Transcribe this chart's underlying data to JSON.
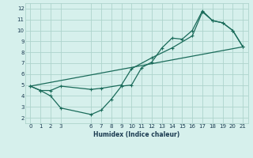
{
  "xlabel": "Humidex (Indice chaleur)",
  "xlim": [
    -0.5,
    21.5
  ],
  "ylim": [
    1.5,
    12.5
  ],
  "xticks": [
    0,
    1,
    2,
    3,
    6,
    7,
    8,
    9,
    10,
    11,
    12,
    13,
    14,
    15,
    16,
    17,
    18,
    19,
    20,
    21
  ],
  "yticks": [
    2,
    3,
    4,
    5,
    6,
    7,
    8,
    9,
    10,
    11,
    12
  ],
  "line_color": "#1a6b5a",
  "bg_color": "#d6f0ec",
  "grid_color": "#aed4cc",
  "line1_x": [
    0,
    1,
    2,
    3,
    6,
    7,
    8,
    9,
    10,
    11,
    12,
    13,
    14,
    15,
    16,
    17,
    18,
    19,
    20,
    21
  ],
  "line1_y": [
    4.9,
    4.5,
    4.0,
    2.9,
    2.3,
    2.7,
    3.7,
    4.9,
    5.0,
    6.6,
    7.1,
    8.4,
    9.3,
    9.2,
    10.0,
    11.8,
    10.9,
    10.7,
    10.0,
    8.5
  ],
  "line2_x": [
    0,
    1,
    2,
    3,
    6,
    7,
    9,
    10,
    12,
    14,
    16,
    17,
    18,
    19,
    20,
    21
  ],
  "line2_y": [
    4.9,
    4.5,
    4.5,
    4.9,
    4.6,
    4.7,
    5.0,
    6.5,
    7.5,
    8.4,
    9.5,
    11.7,
    10.9,
    10.7,
    10.0,
    8.5
  ],
  "line3_x": [
    0,
    21
  ],
  "line3_y": [
    4.9,
    8.5
  ]
}
